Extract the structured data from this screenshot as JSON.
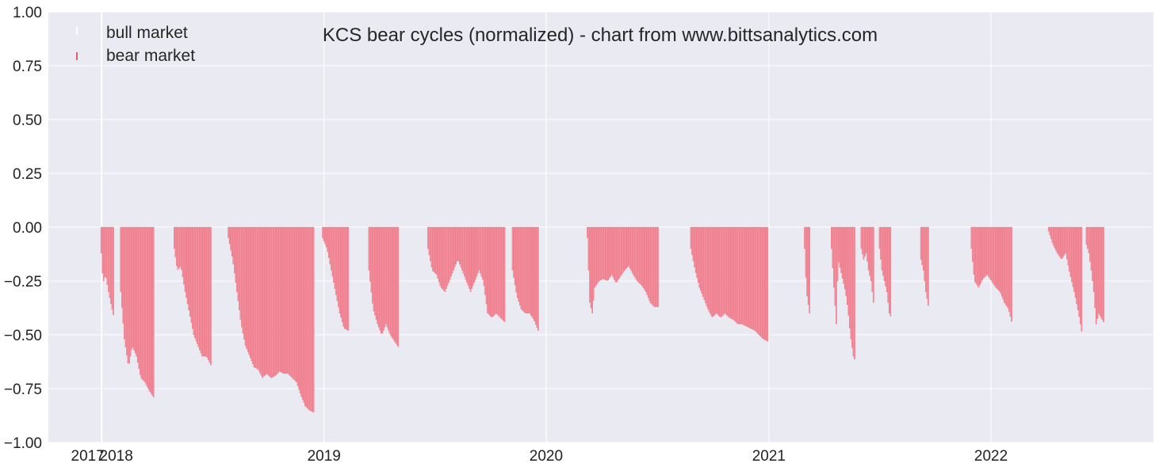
{
  "chart_data": {
    "type": "bar",
    "title": "KCS bear cycles (normalized)  - chart from www.bittsanalytics.com",
    "xlabel": "",
    "ylabel": "",
    "ylim": [
      -1.0,
      1.0
    ],
    "xlim": [
      "2017-10-05",
      "2022-09-25"
    ],
    "grid": true,
    "legend_position": "top-left",
    "colors": {
      "plot_background": "#eaeaf2",
      "grid": "#ffffff",
      "bear_fill": "#f4919e",
      "bear_edge": "#e65a6e",
      "bull_fill": "#ffffff"
    },
    "y_ticks": [
      {
        "value": 1.0,
        "label": "1.00"
      },
      {
        "value": 0.75,
        "label": "0.75"
      },
      {
        "value": 0.5,
        "label": "0.50"
      },
      {
        "value": 0.25,
        "label": "0.25"
      },
      {
        "value": 0.0,
        "label": "0.00"
      },
      {
        "value": -0.25,
        "label": "−0.25"
      },
      {
        "value": -0.5,
        "label": "−0.50"
      },
      {
        "value": -0.75,
        "label": "−0.75"
      },
      {
        "value": -1.0,
        "label": "−1.00"
      }
    ],
    "x_ticks": [
      {
        "date": "2017-12-31",
        "label": "2017"
      },
      {
        "date": "2018-01-01",
        "label": "2018"
      },
      {
        "date": "2019-01-01",
        "label": "2019"
      },
      {
        "date": "2020-01-01",
        "label": "2020"
      },
      {
        "date": "2021-01-01",
        "label": "2021"
      },
      {
        "date": "2022-01-01",
        "label": "2022"
      }
    ],
    "series": [
      {
        "name": "bull market",
        "values": []
      },
      {
        "name": "bear market",
        "segments": [
          {
            "points": [
              [
                "2017-12-30",
                -0.12
              ],
              [
                "2018-01-02",
                -0.26
              ],
              [
                "2018-01-06",
                -0.22
              ],
              [
                "2018-01-11",
                -0.3
              ],
              [
                "2018-01-16",
                -0.37
              ],
              [
                "2018-01-20",
                -0.42
              ]
            ]
          },
          {
            "points": [
              [
                "2018-01-31",
                -0.3
              ],
              [
                "2018-02-06",
                -0.52
              ],
              [
                "2018-02-13",
                -0.65
              ],
              [
                "2018-02-19",
                -0.55
              ],
              [
                "2018-02-26",
                -0.6
              ],
              [
                "2018-03-05",
                -0.7
              ],
              [
                "2018-03-12",
                -0.72
              ],
              [
                "2018-03-19",
                -0.76
              ],
              [
                "2018-03-26",
                -0.79
              ]
            ]
          },
          {
            "points": [
              [
                "2018-04-29",
                -0.1
              ],
              [
                "2018-05-04",
                -0.2
              ],
              [
                "2018-05-10",
                -0.18
              ],
              [
                "2018-05-17",
                -0.3
              ],
              [
                "2018-05-24",
                -0.4
              ],
              [
                "2018-05-31",
                -0.5
              ],
              [
                "2018-06-07",
                -0.55
              ],
              [
                "2018-06-14",
                -0.6
              ],
              [
                "2018-06-21",
                -0.6
              ],
              [
                "2018-06-28",
                -0.64
              ]
            ]
          },
          {
            "points": [
              [
                "2018-07-27",
                -0.05
              ],
              [
                "2018-08-03",
                -0.15
              ],
              [
                "2018-08-10",
                -0.3
              ],
              [
                "2018-08-17",
                -0.45
              ],
              [
                "2018-08-24",
                -0.55
              ],
              [
                "2018-08-31",
                -0.6
              ],
              [
                "2018-09-07",
                -0.65
              ],
              [
                "2018-09-14",
                -0.66
              ],
              [
                "2018-09-21",
                -0.7
              ],
              [
                "2018-09-28",
                -0.68
              ],
              [
                "2018-10-05",
                -0.7
              ],
              [
                "2018-10-12",
                -0.69
              ],
              [
                "2018-10-19",
                -0.67
              ],
              [
                "2018-10-26",
                -0.68
              ],
              [
                "2018-11-02",
                -0.68
              ],
              [
                "2018-11-09",
                -0.7
              ],
              [
                "2018-11-16",
                -0.72
              ],
              [
                "2018-11-23",
                -0.78
              ],
              [
                "2018-11-30",
                -0.83
              ],
              [
                "2018-12-07",
                -0.85
              ],
              [
                "2018-12-14",
                -0.86
              ]
            ]
          },
          {
            "points": [
              [
                "2018-12-29",
                -0.05
              ],
              [
                "2019-01-05",
                -0.1
              ],
              [
                "2019-01-12",
                -0.2
              ],
              [
                "2019-01-19",
                -0.3
              ],
              [
                "2019-01-26",
                -0.4
              ],
              [
                "2019-02-02",
                -0.47
              ],
              [
                "2019-02-09",
                -0.48
              ]
            ]
          },
          {
            "points": [
              [
                "2019-03-15",
                -0.2
              ],
              [
                "2019-03-22",
                -0.38
              ],
              [
                "2019-03-29",
                -0.45
              ],
              [
                "2019-04-05",
                -0.5
              ],
              [
                "2019-04-12",
                -0.45
              ],
              [
                "2019-04-19",
                -0.5
              ],
              [
                "2019-04-26",
                -0.53
              ],
              [
                "2019-05-03",
                -0.56
              ]
            ]
          },
          {
            "points": [
              [
                "2019-06-20",
                -0.1
              ],
              [
                "2019-06-27",
                -0.2
              ],
              [
                "2019-07-04",
                -0.22
              ],
              [
                "2019-07-11",
                -0.28
              ],
              [
                "2019-07-18",
                -0.3
              ],
              [
                "2019-07-25",
                -0.25
              ],
              [
                "2019-08-01",
                -0.2
              ],
              [
                "2019-08-08",
                -0.15
              ],
              [
                "2019-08-15",
                -0.2
              ],
              [
                "2019-08-22",
                -0.25
              ],
              [
                "2019-08-29",
                -0.3
              ],
              [
                "2019-09-05",
                -0.25
              ],
              [
                "2019-09-12",
                -0.2
              ],
              [
                "2019-09-19",
                -0.25
              ],
              [
                "2019-09-26",
                -0.4
              ],
              [
                "2019-10-03",
                -0.42
              ],
              [
                "2019-10-10",
                -0.4
              ],
              [
                "2019-10-17",
                -0.42
              ],
              [
                "2019-10-24",
                -0.44
              ]
            ]
          },
          {
            "points": [
              [
                "2019-11-06",
                -0.2
              ],
              [
                "2019-11-13",
                -0.32
              ],
              [
                "2019-11-20",
                -0.38
              ],
              [
                "2019-11-27",
                -0.4
              ],
              [
                "2019-12-04",
                -0.4
              ],
              [
                "2019-12-11",
                -0.43
              ],
              [
                "2019-12-18",
                -0.48
              ]
            ]
          },
          {
            "points": [
              [
                "2020-03-08",
                -0.05
              ],
              [
                "2020-03-12",
                -0.35
              ],
              [
                "2020-03-16",
                -0.4
              ],
              [
                "2020-03-20",
                -0.28
              ],
              [
                "2020-03-27",
                -0.25
              ],
              [
                "2020-04-03",
                -0.24
              ],
              [
                "2020-04-10",
                -0.25
              ],
              [
                "2020-04-17",
                -0.22
              ],
              [
                "2020-04-24",
                -0.26
              ],
              [
                "2020-05-01",
                -0.23
              ],
              [
                "2020-05-08",
                -0.2
              ],
              [
                "2020-05-15",
                -0.18
              ],
              [
                "2020-05-22",
                -0.22
              ],
              [
                "2020-05-29",
                -0.25
              ],
              [
                "2020-06-05",
                -0.27
              ],
              [
                "2020-06-12",
                -0.3
              ],
              [
                "2020-06-19",
                -0.35
              ],
              [
                "2020-06-26",
                -0.37
              ],
              [
                "2020-07-03",
                -0.37
              ]
            ]
          },
          {
            "points": [
              [
                "2020-08-25",
                -0.1
              ],
              [
                "2020-09-01",
                -0.2
              ],
              [
                "2020-09-08",
                -0.28
              ],
              [
                "2020-09-15",
                -0.33
              ],
              [
                "2020-09-22",
                -0.38
              ],
              [
                "2020-09-29",
                -0.42
              ],
              [
                "2020-10-06",
                -0.4
              ],
              [
                "2020-10-13",
                -0.42
              ],
              [
                "2020-10-20",
                -0.4
              ],
              [
                "2020-10-27",
                -0.42
              ],
              [
                "2020-11-03",
                -0.43
              ],
              [
                "2020-11-10",
                -0.45
              ],
              [
                "2020-11-17",
                -0.45
              ],
              [
                "2020-11-24",
                -0.46
              ],
              [
                "2020-12-01",
                -0.47
              ],
              [
                "2020-12-08",
                -0.48
              ],
              [
                "2020-12-15",
                -0.5
              ],
              [
                "2020-12-22",
                -0.52
              ],
              [
                "2020-12-29",
                -0.53
              ]
            ]
          },
          {
            "points": [
              [
                "2021-02-28",
                -0.1
              ],
              [
                "2021-03-03",
                -0.3
              ],
              [
                "2021-03-08",
                -0.4
              ]
            ]
          },
          {
            "points": [
              [
                "2021-04-13",
                -0.1
              ],
              [
                "2021-04-17",
                -0.28
              ],
              [
                "2021-04-21",
                -0.45
              ],
              [
                "2021-04-24",
                -0.15
              ],
              [
                "2021-04-28",
                -0.2
              ],
              [
                "2021-05-02",
                -0.25
              ],
              [
                "2021-05-06",
                -0.3
              ],
              [
                "2021-05-10",
                -0.38
              ],
              [
                "2021-05-14",
                -0.5
              ],
              [
                "2021-05-19",
                -0.6
              ],
              [
                "2021-05-22",
                -0.62
              ]
            ]
          },
          {
            "points": [
              [
                "2021-06-01",
                -0.1
              ],
              [
                "2021-06-05",
                -0.15
              ],
              [
                "2021-06-09",
                -0.12
              ],
              [
                "2021-06-13",
                -0.2
              ],
              [
                "2021-06-17",
                -0.25
              ],
              [
                "2021-06-21",
                -0.35
              ]
            ]
          },
          {
            "points": [
              [
                "2021-07-01",
                -0.1
              ],
              [
                "2021-07-05",
                -0.2
              ],
              [
                "2021-07-09",
                -0.25
              ],
              [
                "2021-07-13",
                -0.3
              ],
              [
                "2021-07-17",
                -0.4
              ],
              [
                "2021-07-20",
                -0.42
              ]
            ]
          },
          {
            "points": [
              [
                "2021-09-07",
                -0.15
              ],
              [
                "2021-09-11",
                -0.2
              ],
              [
                "2021-09-15",
                -0.3
              ],
              [
                "2021-09-20",
                -0.38
              ]
            ]
          },
          {
            "points": [
              [
                "2021-11-29",
                -0.1
              ],
              [
                "2021-12-04",
                -0.25
              ],
              [
                "2021-12-11",
                -0.28
              ],
              [
                "2021-12-18",
                -0.24
              ],
              [
                "2021-12-25",
                -0.22
              ],
              [
                "2022-01-01",
                -0.25
              ],
              [
                "2022-01-08",
                -0.28
              ],
              [
                "2022-01-15",
                -0.3
              ],
              [
                "2022-01-22",
                -0.35
              ],
              [
                "2022-01-29",
                -0.38
              ],
              [
                "2022-02-04",
                -0.45
              ]
            ]
          },
          {
            "points": [
              [
                "2022-04-05",
                -0.02
              ],
              [
                "2022-04-12",
                -0.08
              ],
              [
                "2022-04-19",
                -0.12
              ],
              [
                "2022-04-26",
                -0.15
              ],
              [
                "2022-05-03",
                -0.12
              ],
              [
                "2022-05-10",
                -0.22
              ],
              [
                "2022-05-17",
                -0.3
              ],
              [
                "2022-05-24",
                -0.4
              ],
              [
                "2022-05-30",
                -0.5
              ]
            ]
          },
          {
            "points": [
              [
                "2022-06-06",
                -0.08
              ],
              [
                "2022-06-10",
                -0.12
              ],
              [
                "2022-06-14",
                -0.2
              ],
              [
                "2022-06-18",
                -0.3
              ],
              [
                "2022-06-22",
                -0.45
              ],
              [
                "2022-06-26",
                -0.4
              ],
              [
                "2022-06-30",
                -0.42
              ],
              [
                "2022-07-04",
                -0.44
              ]
            ]
          }
        ]
      }
    ]
  }
}
